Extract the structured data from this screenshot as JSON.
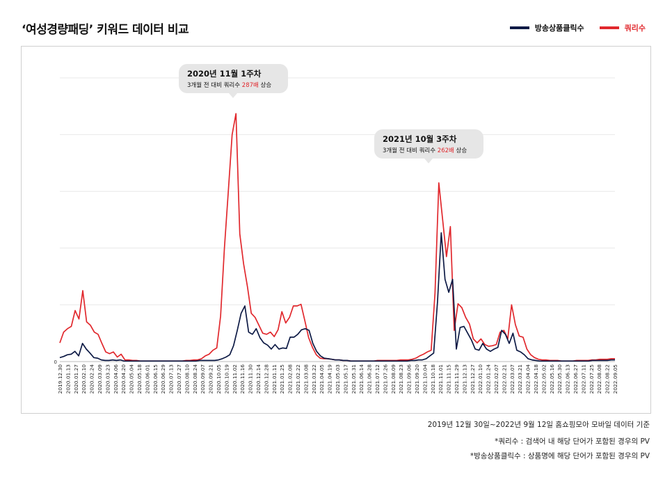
{
  "title": "‘여성경량패딩’ 키워드 데이터 비교",
  "legend": [
    {
      "name": "방송상품클릭수",
      "color": "#0d1a45"
    },
    {
      "name": "쿼리수",
      "color": "#e1282d"
    }
  ],
  "callouts": [
    {
      "line1": "2020년 11월 1주차",
      "pre": "3개월 전 대비 쿼리수 ",
      "hl": "287배",
      "post": " 상승"
    },
    {
      "line1": "2021년 10월 3주차",
      "pre": "3개월 전 대비 쿼리수 ",
      "hl": "262배",
      "post": " 상승"
    }
  ],
  "notes": {
    "period": "2019년 12월 30일~2022년 9월 12일 홈쇼핑모아 모바일 데이터 기준",
    "query_def": "*쿼리수 : 검색어 내 해당 단어가 포함된 경우의 PV",
    "click_def": "*방송상품클릭수 : 상품명에 해당 단어가 포함된 경우의 PV"
  },
  "chart_data": {
    "type": "line",
    "xlabel": "",
    "ylabel": "",
    "ylim": [
      0,
      5
    ],
    "y_ticks": [
      "0"
    ],
    "grid": true,
    "legend_position": "top-right",
    "x_tick_labels": [
      "2019.12.30",
      "2020.01.13",
      "2020.01.27",
      "2020.02.10",
      "2020.02.24",
      "2020.03.09",
      "2020.03.23",
      "2020.04.06",
      "2020.04.20",
      "2020.05.04",
      "2020.05.18",
      "2020.06.01",
      "2020.06.15",
      "2020.06.29",
      "2020.07.13",
      "2020.07.27",
      "2020.08.10",
      "2020.08.24",
      "2020.09.07",
      "2020.09.21",
      "2020.10.05",
      "2020.10.19",
      "2020.11.02",
      "2020.11.16",
      "2020.11.30",
      "2020.12.14",
      "2020.12.28",
      "2021.01.11",
      "2021.01.25",
      "2021.02.08",
      "2021.02.22",
      "2021.03.08",
      "2021.03.22",
      "2021.04.05",
      "2021.04.19",
      "2021.05.03",
      "2021.05.17",
      "2021.05.31",
      "2021.06.14",
      "2021.06.28",
      "2021.07.12",
      "2021.07.26",
      "2021.08.09",
      "2021.08.23",
      "2021.09.06",
      "2021.09.20",
      "2021.10.04",
      "2021.10.18",
      "2021.11.01",
      "2021.11.15",
      "2021.11.29",
      "2021.12.13",
      "2021.12.27",
      "2022.01.10",
      "2022.01.24",
      "2022.02.07",
      "2022.02.21",
      "2022.03.07",
      "2022.03.21",
      "2022.04.04",
      "2022.04.18",
      "2022.05.02",
      "2022.05.16",
      "2022.05.30",
      "2022.06.13",
      "2022.06.27",
      "2022.07.11",
      "2022.07.25",
      "2022.08.08",
      "2022.08.22",
      "2022.09.05"
    ],
    "series": [
      {
        "name": "방송상품클릭수",
        "color": "#0d1a45",
        "values": [
          0.07,
          0.09,
          0.12,
          0.13,
          0.18,
          0.1,
          0.32,
          0.22,
          0.15,
          0.07,
          0.06,
          0.03,
          0.02,
          0.02,
          0.03,
          0.02,
          0.03,
          0.01,
          0.01,
          0.01,
          0.01,
          0.01,
          0.01,
          0.01,
          0.01,
          0.01,
          0.01,
          0.01,
          0.01,
          0.01,
          0.01,
          0.01,
          0.01,
          0.01,
          0.01,
          0.01,
          0.01,
          0.02,
          0.02,
          0.02,
          0.02,
          0.02,
          0.03,
          0.05,
          0.08,
          0.12,
          0.28,
          0.55,
          0.85,
          0.98,
          0.52,
          0.48,
          0.58,
          0.42,
          0.33,
          0.29,
          0.22,
          0.3,
          0.22,
          0.24,
          0.23,
          0.43,
          0.43,
          0.48,
          0.56,
          0.58,
          0.55,
          0.32,
          0.18,
          0.1,
          0.06,
          0.05,
          0.04,
          0.03,
          0.03,
          0.02,
          0.02,
          0.01,
          0.01,
          0.01,
          0.01,
          0.01,
          0.01,
          0.01,
          0.01,
          0.01,
          0.01,
          0.01,
          0.01,
          0.01,
          0.01,
          0.01,
          0.01,
          0.02,
          0.02,
          0.03,
          0.03,
          0.05,
          0.1,
          0.15,
          1.05,
          2.27,
          1.45,
          1.22,
          1.45,
          0.22,
          0.6,
          0.62,
          0.5,
          0.38,
          0.22,
          0.2,
          0.32,
          0.22,
          0.18,
          0.22,
          0.25,
          0.55,
          0.48,
          0.32,
          0.5,
          0.2,
          0.17,
          0.12,
          0.05,
          0.03,
          0.02,
          0.01,
          0.01,
          0.01,
          0.01,
          0.01,
          0.01,
          0.01,
          0.01,
          0.01,
          0.01,
          0.01,
          0.01,
          0.01,
          0.01,
          0.02,
          0.02,
          0.02,
          0.02,
          0.02,
          0.03,
          0.03
        ]
      },
      {
        "name": "쿼리수",
        "color": "#e1282d",
        "values": [
          0.33,
          0.52,
          0.58,
          0.62,
          0.9,
          0.75,
          1.25,
          0.7,
          0.64,
          0.52,
          0.48,
          0.32,
          0.17,
          0.14,
          0.17,
          0.08,
          0.13,
          0.03,
          0.03,
          0.02,
          0.02,
          0.01,
          0.01,
          0.01,
          0.01,
          0.01,
          0.01,
          0.01,
          0.01,
          0.01,
          0.01,
          0.01,
          0.01,
          0.02,
          0.02,
          0.03,
          0.03,
          0.05,
          0.1,
          0.13,
          0.2,
          0.24,
          0.8,
          2.0,
          3.0,
          4.0,
          4.37,
          2.25,
          1.72,
          1.32,
          0.85,
          0.78,
          0.64,
          0.5,
          0.48,
          0.52,
          0.44,
          0.56,
          0.88,
          0.68,
          0.78,
          0.98,
          0.98,
          1.01,
          0.72,
          0.42,
          0.25,
          0.12,
          0.06,
          0.05,
          0.05,
          0.04,
          0.03,
          0.03,
          0.02,
          0.02,
          0.01,
          0.01,
          0.01,
          0.01,
          0.01,
          0.01,
          0.01,
          0.02,
          0.02,
          0.02,
          0.02,
          0.02,
          0.02,
          0.03,
          0.03,
          0.03,
          0.04,
          0.06,
          0.1,
          0.13,
          0.17,
          0.2,
          1.2,
          3.15,
          2.5,
          1.85,
          2.38,
          0.55,
          1.02,
          0.95,
          0.78,
          0.66,
          0.4,
          0.33,
          0.4,
          0.3,
          0.27,
          0.28,
          0.3,
          0.52,
          0.55,
          0.4,
          1.0,
          0.65,
          0.45,
          0.43,
          0.22,
          0.12,
          0.07,
          0.04,
          0.03,
          0.03,
          0.02,
          0.02,
          0.02,
          0.01,
          0.01,
          0.01,
          0.01,
          0.02,
          0.02,
          0.02,
          0.02,
          0.03,
          0.03,
          0.04,
          0.04,
          0.04,
          0.05,
          0.05
        ]
      }
    ]
  }
}
